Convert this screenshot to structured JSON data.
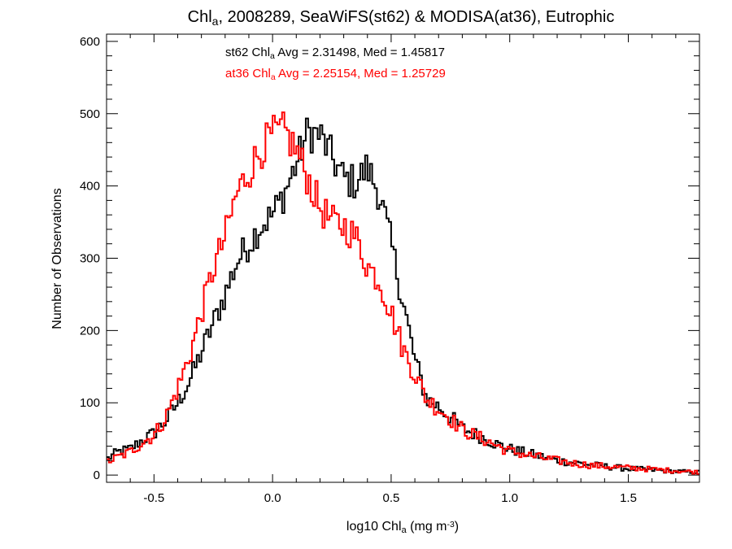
{
  "chart_data": {
    "type": "histogram-step",
    "title": {
      "parts": [
        "Chl",
        "a",
        ", 2008289, SeaWiFS(st62) & MODISA(at36), Eutrophic"
      ]
    },
    "xlabel": {
      "parts": [
        "log10 Chl",
        "a",
        " (mg m",
        "-3",
        ")"
      ]
    },
    "ylabel": "Number of Observations",
    "xlim": [
      -0.7,
      1.8
    ],
    "ylim": [
      -10,
      610
    ],
    "x_ticks": [
      {
        "value": -0.5,
        "label": "-0.5"
      },
      {
        "value": 0.0,
        "label": "0.0"
      },
      {
        "value": 0.5,
        "label": "0.5"
      },
      {
        "value": 1.0,
        "label": "1.0"
      },
      {
        "value": 1.5,
        "label": "1.5"
      }
    ],
    "y_ticks": [
      {
        "value": 0,
        "label": "0"
      },
      {
        "value": 100,
        "label": "100"
      },
      {
        "value": 200,
        "label": "200"
      },
      {
        "value": 300,
        "label": "300"
      },
      {
        "value": 400,
        "label": "400"
      },
      {
        "value": 500,
        "label": "500"
      },
      {
        "value": 600,
        "label": "600"
      }
    ],
    "series": [
      {
        "name": "st62",
        "color": "#000000",
        "stats": {
          "parts": [
            "st62 Chl",
            "a",
            " Avg = 2.31498, Med = 1.45817"
          ]
        },
        "points": [
          [
            -0.7,
            22
          ],
          [
            -0.65,
            32
          ],
          [
            -0.6,
            36
          ],
          [
            -0.55,
            48
          ],
          [
            -0.5,
            58
          ],
          [
            -0.45,
            75
          ],
          [
            -0.4,
            100
          ],
          [
            -0.35,
            130
          ],
          [
            -0.3,
            170
          ],
          [
            -0.25,
            210
          ],
          [
            -0.2,
            250
          ],
          [
            -0.15,
            295
          ],
          [
            -0.1,
            320
          ],
          [
            -0.05,
            345
          ],
          [
            0.0,
            360
          ],
          [
            0.05,
            390
          ],
          [
            0.1,
            430
          ],
          [
            0.15,
            475
          ],
          [
            0.2,
            470
          ],
          [
            0.25,
            440
          ],
          [
            0.3,
            410
          ],
          [
            0.35,
            405
          ],
          [
            0.4,
            425
          ],
          [
            0.45,
            390
          ],
          [
            0.5,
            320
          ],
          [
            0.55,
            240
          ],
          [
            0.6,
            160
          ],
          [
            0.65,
            105
          ],
          [
            0.7,
            95
          ],
          [
            0.75,
            80
          ],
          [
            0.8,
            65
          ],
          [
            0.85,
            57
          ],
          [
            0.9,
            50
          ],
          [
            0.95,
            42
          ],
          [
            1.0,
            36
          ],
          [
            1.1,
            28
          ],
          [
            1.2,
            20
          ],
          [
            1.3,
            16
          ],
          [
            1.4,
            12
          ],
          [
            1.5,
            9
          ],
          [
            1.6,
            7
          ],
          [
            1.7,
            5
          ],
          [
            1.8,
            4
          ]
        ]
      },
      {
        "name": "at36",
        "color": "#ff0000",
        "stats": {
          "parts": [
            "at36 Chl",
            "a",
            " Avg = 2.25154, Med = 1.25729"
          ]
        },
        "points": [
          [
            -0.7,
            18
          ],
          [
            -0.65,
            25
          ],
          [
            -0.6,
            32
          ],
          [
            -0.55,
            45
          ],
          [
            -0.5,
            55
          ],
          [
            -0.45,
            80
          ],
          [
            -0.4,
            120
          ],
          [
            -0.35,
            165
          ],
          [
            -0.3,
            225
          ],
          [
            -0.25,
            285
          ],
          [
            -0.2,
            330
          ],
          [
            -0.15,
            390
          ],
          [
            -0.1,
            420
          ],
          [
            -0.05,
            450
          ],
          [
            0.0,
            470
          ],
          [
            0.05,
            475
          ],
          [
            0.1,
            450
          ],
          [
            0.15,
            410
          ],
          [
            0.2,
            370
          ],
          [
            0.25,
            350
          ],
          [
            0.3,
            345
          ],
          [
            0.35,
            330
          ],
          [
            0.4,
            290
          ],
          [
            0.45,
            270
          ],
          [
            0.5,
            225
          ],
          [
            0.55,
            175
          ],
          [
            0.6,
            140
          ],
          [
            0.65,
            105
          ],
          [
            0.7,
            92
          ],
          [
            0.75,
            78
          ],
          [
            0.8,
            63
          ],
          [
            0.85,
            55
          ],
          [
            0.9,
            48
          ],
          [
            0.95,
            40
          ],
          [
            1.0,
            33
          ],
          [
            1.1,
            26
          ],
          [
            1.2,
            20
          ],
          [
            1.3,
            15
          ],
          [
            1.4,
            12
          ],
          [
            1.5,
            10
          ],
          [
            1.6,
            8
          ],
          [
            1.7,
            6
          ],
          [
            1.8,
            4
          ]
        ]
      }
    ]
  }
}
